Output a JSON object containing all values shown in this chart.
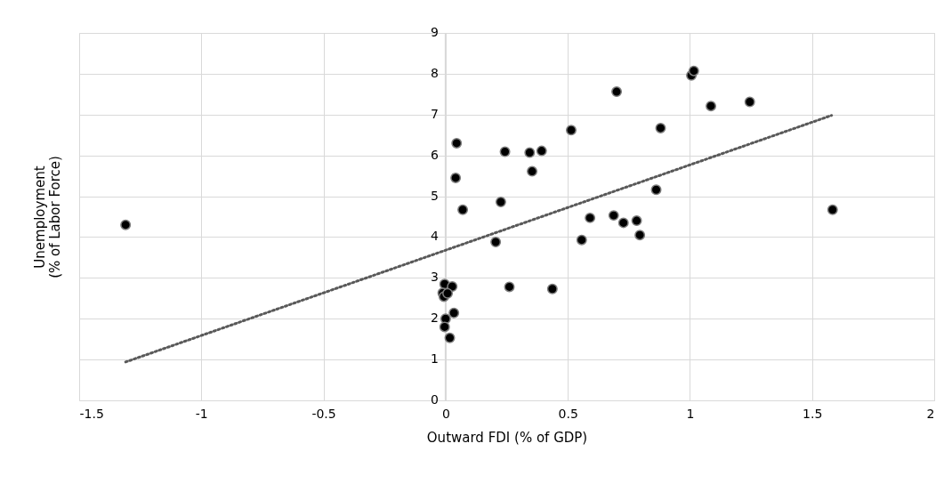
{
  "chart_data": {
    "type": "scatter",
    "xlabel": "Outward FDI (% of GDP)",
    "ylabel": "Unemployment\n(% of Labor Force)",
    "xlim": [
      -1.5,
      2
    ],
    "xticks": [
      -1.5,
      -1,
      -0.5,
      0,
      0.5,
      1,
      1.5,
      2
    ],
    "ylim": [
      0,
      9
    ],
    "yticks": [
      0,
      1,
      2,
      3,
      4,
      5,
      6,
      7,
      8,
      9
    ],
    "grid": true,
    "series": [
      {
        "color": "#000000",
        "marker": "circle",
        "x": [
          -1.31,
          0.7,
          1.006,
          1.016,
          1.086,
          1.245,
          0.88,
          0.862,
          1.584,
          0.591,
          0.688,
          0.728,
          0.782,
          0.795,
          0.045,
          0.041,
          0.07,
          0.243,
          0.344,
          0.393,
          0.354,
          0.514,
          0.226,
          0.205,
          0.557,
          0.261,
          0.437,
          -0.004,
          0.027,
          -0.012,
          -0.007,
          0.008,
          0.034,
          0.0,
          -0.004,
          0.017
        ],
        "values": [
          4.3,
          7.56,
          7.96,
          8.07,
          7.21,
          7.31,
          6.67,
          5.16,
          4.67,
          4.47,
          4.53,
          4.35,
          4.4,
          4.05,
          6.3,
          5.45,
          4.67,
          6.09,
          6.07,
          6.11,
          5.61,
          6.62,
          4.86,
          3.88,
          3.93,
          2.78,
          2.73,
          2.85,
          2.79,
          2.63,
          2.54,
          2.62,
          2.14,
          2.0,
          1.8,
          1.53
        ]
      },
      {
        "type": "line",
        "color": "#595959",
        "line_style": "dotted",
        "marker": "none",
        "x": [
          -1.31,
          1.58
        ],
        "values": [
          0.94,
          6.98
        ]
      }
    ]
  }
}
